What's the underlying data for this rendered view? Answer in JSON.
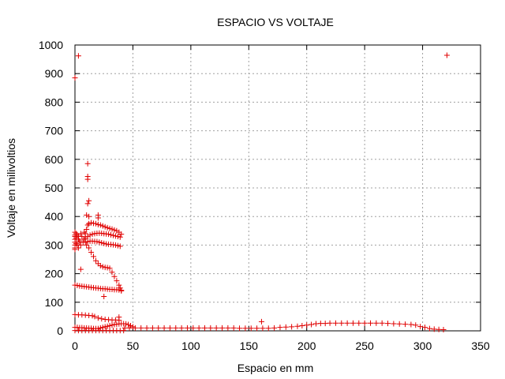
{
  "chart_data": {
    "type": "scatter",
    "title": "ESPACIO VS VOLTAJE",
    "xlabel": "Espacio en mm",
    "ylabel": "Voltaje en milivoltios",
    "xlim": [
      0,
      350
    ],
    "ylim": [
      0,
      1000
    ],
    "xticks": [
      0,
      50,
      100,
      150,
      200,
      250,
      300,
      350
    ],
    "yticks": [
      0,
      100,
      200,
      300,
      400,
      500,
      600,
      700,
      800,
      900,
      1000
    ],
    "grid": true,
    "marker": "+",
    "color": "#e00000",
    "points": [
      [
        0,
        885
      ],
      [
        3,
        962
      ],
      [
        321,
        964
      ],
      [
        11,
        585
      ],
      [
        11,
        540
      ],
      [
        11,
        530
      ],
      [
        12,
        455
      ],
      [
        11,
        445
      ],
      [
        10,
        405
      ],
      [
        12,
        400
      ],
      [
        20,
        405
      ],
      [
        20,
        395
      ],
      [
        5,
        215
      ],
      [
        25,
        120
      ],
      [
        40,
        140
      ],
      [
        0,
        345
      ],
      [
        0,
        335
      ],
      [
        0,
        330
      ],
      [
        0,
        320
      ],
      [
        0,
        310
      ],
      [
        0,
        300
      ],
      [
        0,
        290
      ],
      [
        0,
        285
      ],
      [
        1,
        340
      ],
      [
        1,
        325
      ],
      [
        1,
        305
      ],
      [
        2,
        335
      ],
      [
        2,
        300
      ],
      [
        3,
        330
      ],
      [
        3,
        320
      ],
      [
        3,
        290
      ],
      [
        4,
        315
      ],
      [
        4,
        310
      ],
      [
        5,
        340
      ],
      [
        5,
        300
      ],
      [
        6,
        330
      ],
      [
        7,
        310
      ],
      [
        8,
        345
      ],
      [
        8,
        320
      ],
      [
        10,
        300
      ],
      [
        12,
        290
      ],
      [
        14,
        275
      ],
      [
        16,
        260
      ],
      [
        18,
        245
      ],
      [
        20,
        235
      ],
      [
        22,
        228
      ],
      [
        24,
        224
      ],
      [
        26,
        222
      ],
      [
        28,
        221
      ],
      [
        30,
        219
      ],
      [
        32,
        205
      ],
      [
        34,
        190
      ],
      [
        36,
        175
      ],
      [
        38,
        160
      ],
      [
        39,
        150
      ],
      [
        9,
        340
      ],
      [
        10,
        355
      ],
      [
        11,
        370
      ],
      [
        12,
        375
      ],
      [
        14,
        378
      ],
      [
        16,
        376
      ],
      [
        18,
        375
      ],
      [
        20,
        372
      ],
      [
        22,
        370
      ],
      [
        24,
        367
      ],
      [
        26,
        364
      ],
      [
        28,
        361
      ],
      [
        30,
        358
      ],
      [
        32,
        356
      ],
      [
        34,
        353
      ],
      [
        36,
        350
      ],
      [
        38,
        345
      ],
      [
        40,
        338
      ],
      [
        9,
        325
      ],
      [
        11,
        330
      ],
      [
        13,
        335
      ],
      [
        15,
        338
      ],
      [
        17,
        340
      ],
      [
        19,
        341
      ],
      [
        21,
        342
      ],
      [
        23,
        341
      ],
      [
        25,
        340
      ],
      [
        27,
        339
      ],
      [
        29,
        338
      ],
      [
        31,
        336
      ],
      [
        33,
        334
      ],
      [
        35,
        332
      ],
      [
        37,
        330
      ],
      [
        39,
        328
      ],
      [
        9,
        310
      ],
      [
        11,
        312
      ],
      [
        13,
        314
      ],
      [
        15,
        314
      ],
      [
        17,
        313
      ],
      [
        19,
        312
      ],
      [
        21,
        310
      ],
      [
        23,
        308
      ],
      [
        25,
        306
      ],
      [
        27,
        304
      ],
      [
        29,
        303
      ],
      [
        31,
        302
      ],
      [
        33,
        301
      ],
      [
        35,
        300
      ],
      [
        37,
        298
      ],
      [
        39,
        296
      ],
      [
        0,
        160
      ],
      [
        2,
        159
      ],
      [
        4,
        157
      ],
      [
        6,
        156
      ],
      [
        8,
        155
      ],
      [
        10,
        154
      ],
      [
        12,
        153
      ],
      [
        14,
        152
      ],
      [
        16,
        151
      ],
      [
        18,
        150
      ],
      [
        20,
        149
      ],
      [
        22,
        148
      ],
      [
        24,
        147
      ],
      [
        26,
        147
      ],
      [
        28,
        146
      ],
      [
        30,
        145
      ],
      [
        32,
        145
      ],
      [
        34,
        144
      ],
      [
        36,
        144
      ],
      [
        38,
        143
      ],
      [
        40,
        142
      ],
      [
        0,
        57
      ],
      [
        3,
        56
      ],
      [
        6,
        56
      ],
      [
        9,
        55
      ],
      [
        12,
        54
      ],
      [
        15,
        53
      ],
      [
        17,
        50
      ],
      [
        20,
        45
      ],
      [
        23,
        42
      ],
      [
        26,
        40
      ],
      [
        29,
        39
      ],
      [
        32,
        38
      ],
      [
        35,
        38
      ],
      [
        38,
        37
      ],
      [
        38,
        48
      ],
      [
        0,
        12
      ],
      [
        2,
        12
      ],
      [
        4,
        11
      ],
      [
        6,
        11
      ],
      [
        8,
        10
      ],
      [
        10,
        10
      ],
      [
        12,
        9
      ],
      [
        14,
        9
      ],
      [
        16,
        8
      ],
      [
        18,
        8
      ],
      [
        20,
        8
      ],
      [
        22,
        10
      ],
      [
        24,
        12
      ],
      [
        26,
        14
      ],
      [
        28,
        16
      ],
      [
        30,
        18
      ],
      [
        32,
        20
      ],
      [
        34,
        22
      ],
      [
        36,
        23
      ],
      [
        38,
        24
      ],
      [
        40,
        25
      ],
      [
        42,
        25
      ],
      [
        44,
        24
      ],
      [
        46,
        22
      ],
      [
        48,
        18
      ],
      [
        50,
        14
      ],
      [
        0,
        1
      ],
      [
        3,
        1
      ],
      [
        6,
        1
      ],
      [
        9,
        1
      ],
      [
        12,
        1
      ],
      [
        15,
        1
      ],
      [
        18,
        1
      ],
      [
        21,
        1
      ],
      [
        24,
        1
      ],
      [
        27,
        1
      ],
      [
        30,
        1
      ],
      [
        33,
        1
      ],
      [
        36,
        1
      ],
      [
        39,
        1
      ],
      [
        42,
        1
      ],
      [
        43,
        10
      ],
      [
        47,
        10
      ],
      [
        52,
        10
      ],
      [
        57,
        10
      ],
      [
        62,
        10
      ],
      [
        67,
        10
      ],
      [
        72,
        10
      ],
      [
        77,
        10
      ],
      [
        82,
        10
      ],
      [
        87,
        10
      ],
      [
        92,
        10
      ],
      [
        97,
        10
      ],
      [
        102,
        10
      ],
      [
        107,
        10
      ],
      [
        112,
        10
      ],
      [
        117,
        10
      ],
      [
        122,
        10
      ],
      [
        127,
        10
      ],
      [
        132,
        10
      ],
      [
        137,
        10
      ],
      [
        142,
        9
      ],
      [
        147,
        9
      ],
      [
        152,
        9
      ],
      [
        157,
        9
      ],
      [
        162,
        9
      ],
      [
        167,
        9
      ],
      [
        172,
        10
      ],
      [
        177,
        12
      ],
      [
        182,
        13
      ],
      [
        187,
        14
      ],
      [
        192,
        16
      ],
      [
        196,
        18
      ],
      [
        200,
        20
      ],
      [
        204,
        22
      ],
      [
        208,
        25
      ],
      [
        212,
        26
      ],
      [
        216,
        26
      ],
      [
        220,
        27
      ],
      [
        225,
        27
      ],
      [
        230,
        27
      ],
      [
        235,
        27
      ],
      [
        240,
        27
      ],
      [
        245,
        27
      ],
      [
        250,
        27
      ],
      [
        255,
        27
      ],
      [
        260,
        27
      ],
      [
        265,
        27
      ],
      [
        270,
        26
      ],
      [
        275,
        25
      ],
      [
        280,
        24
      ],
      [
        285,
        23
      ],
      [
        290,
        22
      ],
      [
        294,
        20
      ],
      [
        298,
        15
      ],
      [
        302,
        12
      ],
      [
        306,
        8
      ],
      [
        310,
        6
      ],
      [
        314,
        5
      ],
      [
        318,
        4
      ],
      [
        161,
        32
      ]
    ]
  }
}
